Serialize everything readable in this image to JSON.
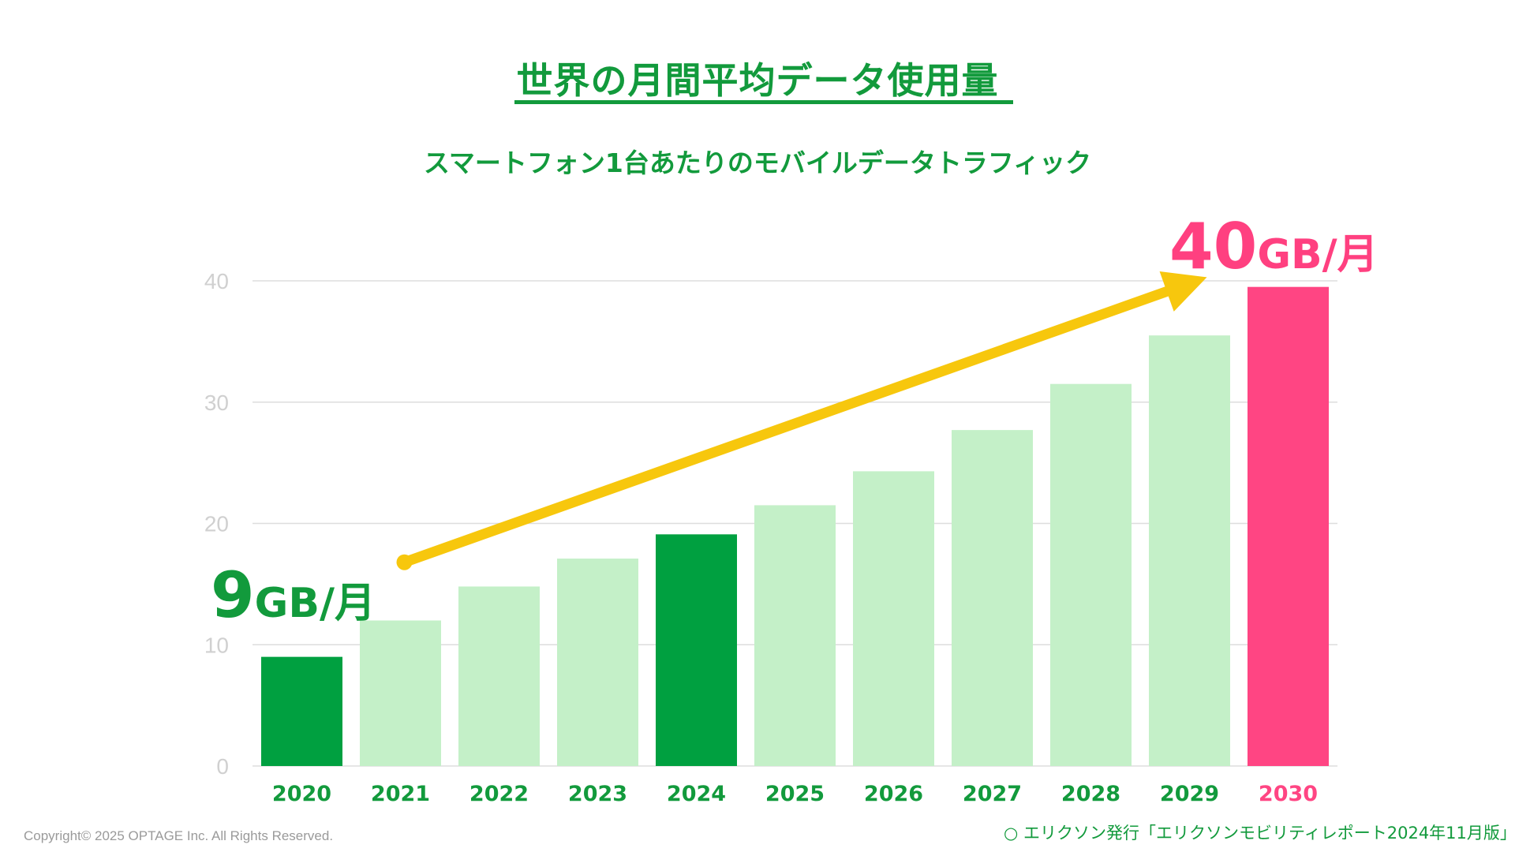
{
  "title": "世界の月間平均データ使用量",
  "subtitle": "スマートフォン1台あたりのモバイルデータトラフィック",
  "annotations": {
    "start_value": "9",
    "start_unit": "GB/月",
    "end_value": "40",
    "end_unit": "GB/月"
  },
  "footer": {
    "copyright": "Copyright© 2025 OPTAGE Inc. All Rights Reserved.",
    "source": "○ エリクソン発行「エリクソンモビリティレポート2024年11月版」"
  },
  "colors": {
    "green_dark": "#00a040",
    "green_light": "#c4f0c8",
    "pink": "#ff4583",
    "arrow": "#f7c70d",
    "grid": "#dddddd",
    "axis_text": "#d0d0d0",
    "label_green": "#129a3c"
  },
  "chart_data": {
    "type": "bar",
    "title": "世界の月間平均データ使用量",
    "subtitle": "スマートフォン1台あたりのモバイルデータトラフィック",
    "xlabel": "",
    "ylabel": "",
    "ylim": [
      0,
      40
    ],
    "yticks": [
      0,
      10,
      20,
      30,
      40
    ],
    "grid": true,
    "categories": [
      "2020",
      "2021",
      "2022",
      "2023",
      "2024",
      "2025",
      "2026",
      "2027",
      "2028",
      "2029",
      "2030"
    ],
    "values": [
      9,
      12,
      14.8,
      17.1,
      19.1,
      21.5,
      24.3,
      27.7,
      31.5,
      35.5,
      39.5
    ],
    "bar_styles": [
      "dark",
      "light",
      "light",
      "light",
      "dark",
      "light",
      "light",
      "light",
      "light",
      "light",
      "pink"
    ],
    "trend_arrow": {
      "from_value": 16.8,
      "from_category": "2021",
      "to_value": 40.3,
      "to_category": "2029"
    }
  }
}
